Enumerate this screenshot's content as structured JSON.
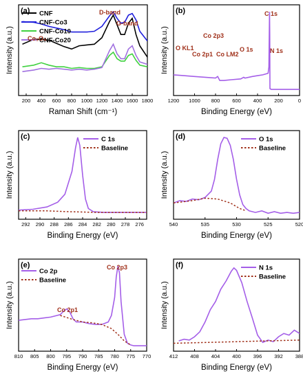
{
  "colors": {
    "cnf": "#000000",
    "co3": "#1f1fdc",
    "co10": "#3fd13f",
    "co20": "#a070e0",
    "xps": "#a45ee8",
    "baseline": "#a0301a",
    "annotation": "#a0301a"
  },
  "chart_data": [
    {
      "id": "a",
      "type": "line",
      "panel_label": "(a)",
      "xlabel": "Raman Shift (cm⁻¹)",
      "ylabel": "Intensity (a.u.)",
      "xlim": [
        100,
        1800
      ],
      "x_ticks": [
        "200",
        "400",
        "600",
        "800",
        "1000",
        "1200",
        "1400",
        "1600",
        "1800"
      ],
      "legend_position": "top-left",
      "annotations": [
        "D-band",
        "G-band",
        "Co₃O₄"
      ],
      "series": [
        {
          "name": "CNF",
          "color_key": "cnf",
          "x": [
            150,
            300,
            400,
            500,
            600,
            700,
            800,
            900,
            1000,
            1100,
            1200,
            1300,
            1350,
            1400,
            1450,
            1500,
            1550,
            1600,
            1650,
            1700,
            1800
          ],
          "y": [
            0.58,
            0.64,
            0.64,
            0.63,
            0.59,
            0.55,
            0.52,
            0.56,
            0.57,
            0.58,
            0.66,
            0.86,
            0.94,
            0.82,
            0.7,
            0.7,
            0.84,
            0.9,
            0.7,
            0.56,
            0.42
          ]
        },
        {
          "name": "CNF-Co3",
          "color_key": "co3",
          "x": [
            150,
            300,
            400,
            500,
            600,
            700,
            800,
            900,
            1000,
            1100,
            1200,
            1300,
            1350,
            1400,
            1450,
            1500,
            1550,
            1600,
            1650,
            1700,
            1800
          ],
          "y": [
            0.86,
            0.85,
            0.83,
            0.8,
            0.78,
            0.76,
            0.73,
            0.73,
            0.73,
            0.74,
            0.8,
            0.93,
            0.98,
            0.9,
            0.84,
            0.85,
            0.94,
            0.96,
            0.88,
            0.74,
            0.62
          ]
        },
        {
          "name": "CNF-Co10",
          "color_key": "co10",
          "x": [
            150,
            300,
            400,
            500,
            600,
            700,
            800,
            900,
            1000,
            1100,
            1200,
            1300,
            1350,
            1400,
            1450,
            1500,
            1550,
            1600,
            1650,
            1700,
            1800
          ],
          "y": [
            0.3,
            0.32,
            0.35,
            0.32,
            0.3,
            0.3,
            0.28,
            0.29,
            0.28,
            0.28,
            0.3,
            0.44,
            0.48,
            0.4,
            0.37,
            0.37,
            0.44,
            0.46,
            0.38,
            0.32,
            0.3
          ]
        },
        {
          "name": "CNF-Co20",
          "color_key": "co20",
          "x": [
            150,
            300,
            400,
            500,
            600,
            700,
            800,
            900,
            1000,
            1100,
            1200,
            1300,
            1350,
            1400,
            1450,
            1500,
            1550,
            1600,
            1650,
            1700,
            1800
          ],
          "y": [
            0.24,
            0.26,
            0.28,
            0.27,
            0.28,
            0.27,
            0.26,
            0.27,
            0.26,
            0.27,
            0.29,
            0.5,
            0.58,
            0.46,
            0.4,
            0.4,
            0.52,
            0.56,
            0.44,
            0.36,
            0.33
          ]
        }
      ]
    },
    {
      "id": "b",
      "type": "line",
      "panel_label": "(b)",
      "xlabel": "Binding Energy (eV)",
      "ylabel": "Intensity (a.u.)",
      "xlim": [
        1200,
        0
      ],
      "x_ticks": [
        "1200",
        "1000",
        "800",
        "600",
        "400",
        "200",
        "0"
      ],
      "annotations": [
        "C 1s",
        "Co 2p3",
        "O KL1",
        "Co 2p1",
        "Co LM2",
        "O 1s",
        "N 1s"
      ],
      "series": [
        {
          "name": "",
          "color_key": "xps",
          "x": [
            1200,
            1100,
            1000,
            900,
            800,
            790,
            780,
            760,
            720,
            650,
            560,
            532,
            520,
            450,
            400,
            350,
            300,
            292,
            286,
            284,
            282,
            270,
            200,
            100,
            0
          ],
          "y": [
            0.2,
            0.19,
            0.18,
            0.17,
            0.16,
            0.17,
            0.18,
            0.13,
            0.13,
            0.14,
            0.15,
            0.17,
            0.16,
            0.18,
            0.19,
            0.2,
            0.22,
            0.3,
            0.98,
            0.7,
            0.03,
            0.02,
            0.02,
            0.02,
            0.02
          ]
        }
      ]
    },
    {
      "id": "c",
      "type": "line",
      "panel_label": "(c)",
      "xlabel": "Binding Energy (eV)",
      "ylabel": "Intensity (a.u.)",
      "xlim": [
        293,
        275
      ],
      "x_ticks": [
        "292",
        "290",
        "288",
        "286",
        "284",
        "282",
        "280",
        "278",
        "276"
      ],
      "legend_position": "top-right",
      "series": [
        {
          "name": "C 1s",
          "color_key": "xps",
          "x": [
            293,
            291,
            289,
            287.5,
            286.5,
            285.5,
            285,
            284.7,
            284.4,
            284,
            283.6,
            283.2,
            282.5,
            281,
            279,
            277,
            275
          ],
          "y": [
            0.06,
            0.07,
            0.1,
            0.16,
            0.26,
            0.55,
            0.85,
            0.98,
            0.88,
            0.5,
            0.2,
            0.08,
            0.04,
            0.03,
            0.03,
            0.03,
            0.03
          ]
        },
        {
          "name": "Baseline",
          "color_key": "baseline",
          "x": [
            293,
            289,
            286,
            284,
            282,
            278,
            275
          ],
          "y": [
            0.05,
            0.05,
            0.04,
            0.035,
            0.03,
            0.03,
            0.03
          ]
        }
      ]
    },
    {
      "id": "d",
      "type": "line",
      "panel_label": "(d)",
      "xlabel": "Binding Energy (eV)",
      "ylabel": "Intensity (a.u.)",
      "xlim": [
        540,
        520
      ],
      "x_ticks": [
        "540",
        "535",
        "530",
        "525",
        "520"
      ],
      "legend_position": "top-right",
      "series": [
        {
          "name": "O 1s",
          "color_key": "xps",
          "x": [
            540,
            539,
            538,
            537,
            536,
            535,
            534,
            533.5,
            533,
            532.5,
            532,
            531.5,
            531,
            530.5,
            530,
            529.5,
            529,
            528.5,
            528,
            527,
            526,
            525,
            524,
            523,
            522,
            521,
            520
          ],
          "y": [
            0.15,
            0.18,
            0.17,
            0.2,
            0.19,
            0.22,
            0.3,
            0.45,
            0.7,
            0.9,
            0.98,
            0.97,
            0.88,
            0.7,
            0.45,
            0.25,
            0.13,
            0.08,
            0.05,
            0.03,
            0.05,
            0.02,
            0.04,
            0.02,
            0.03,
            0.02,
            0.03
          ]
        },
        {
          "name": "Baseline",
          "color_key": "baseline",
          "x": [
            540,
            537,
            535,
            533,
            531,
            529.5,
            528.5
          ],
          "y": [
            0.15,
            0.18,
            0.21,
            0.2,
            0.15,
            0.08,
            0.05
          ]
        }
      ]
    },
    {
      "id": "e",
      "type": "line",
      "panel_label": "(e)",
      "xlabel": "Binding Energy (eV)",
      "ylabel": "Intensity (a.u.)",
      "xlim": [
        810,
        770
      ],
      "x_ticks": [
        "810",
        "805",
        "800",
        "795",
        "790",
        "785",
        "780",
        "775",
        "770"
      ],
      "legend_position": "top-left",
      "annotations": [
        "Co 2p1",
        "Co 2p3"
      ],
      "series": [
        {
          "name": "Co 2p",
          "color_key": "xps",
          "x": [
            810,
            808,
            806,
            804,
            802,
            800,
            798,
            797,
            796,
            795,
            794,
            793,
            792,
            790,
            788,
            786,
            784,
            782,
            781,
            780,
            779.5,
            779,
            778.5,
            778,
            777,
            776,
            775,
            774,
            772,
            770
          ],
          "y": [
            0.32,
            0.33,
            0.34,
            0.34,
            0.35,
            0.36,
            0.38,
            0.39,
            0.43,
            0.46,
            0.42,
            0.34,
            0.3,
            0.3,
            0.28,
            0.27,
            0.27,
            0.3,
            0.38,
            0.6,
            0.85,
            0.98,
            0.9,
            0.55,
            0.15,
            0.04,
            0.02,
            0.01,
            0.01,
            0.01
          ]
        },
        {
          "name": "Baseline",
          "color_key": "baseline",
          "x": [
            797,
            793,
            790,
            787,
            784,
            781,
            779,
            777,
            775
          ],
          "y": [
            0.38,
            0.33,
            0.3,
            0.29,
            0.27,
            0.22,
            0.15,
            0.07,
            0.02
          ]
        }
      ]
    },
    {
      "id": "f",
      "type": "line",
      "panel_label": "(f)",
      "xlabel": "Binding Energy (eV)",
      "ylabel": "Intensity (a.u.)",
      "xlim": [
        412,
        388
      ],
      "x_ticks": [
        "412",
        "408",
        "404",
        "400",
        "396",
        "392",
        "388"
      ],
      "legend_position": "top-right",
      "series": [
        {
          "name": "N 1s",
          "color_key": "xps",
          "x": [
            411,
            410,
            409,
            408,
            407,
            406,
            405,
            404,
            403,
            402,
            401,
            400.5,
            400,
            399,
            398,
            397,
            396,
            395,
            394,
            393,
            392,
            391,
            390,
            389,
            388
          ],
          "y": [
            0.07,
            0.09,
            0.08,
            0.12,
            0.18,
            0.3,
            0.45,
            0.55,
            0.7,
            0.8,
            0.92,
            0.96,
            0.93,
            0.78,
            0.55,
            0.35,
            0.14,
            0.05,
            0.08,
            0.06,
            0.12,
            0.16,
            0.14,
            0.2,
            0.16
          ]
        },
        {
          "name": "Baseline",
          "color_key": "baseline",
          "x": [
            412,
            388
          ],
          "y": [
            0.04,
            0.08
          ]
        }
      ]
    }
  ]
}
